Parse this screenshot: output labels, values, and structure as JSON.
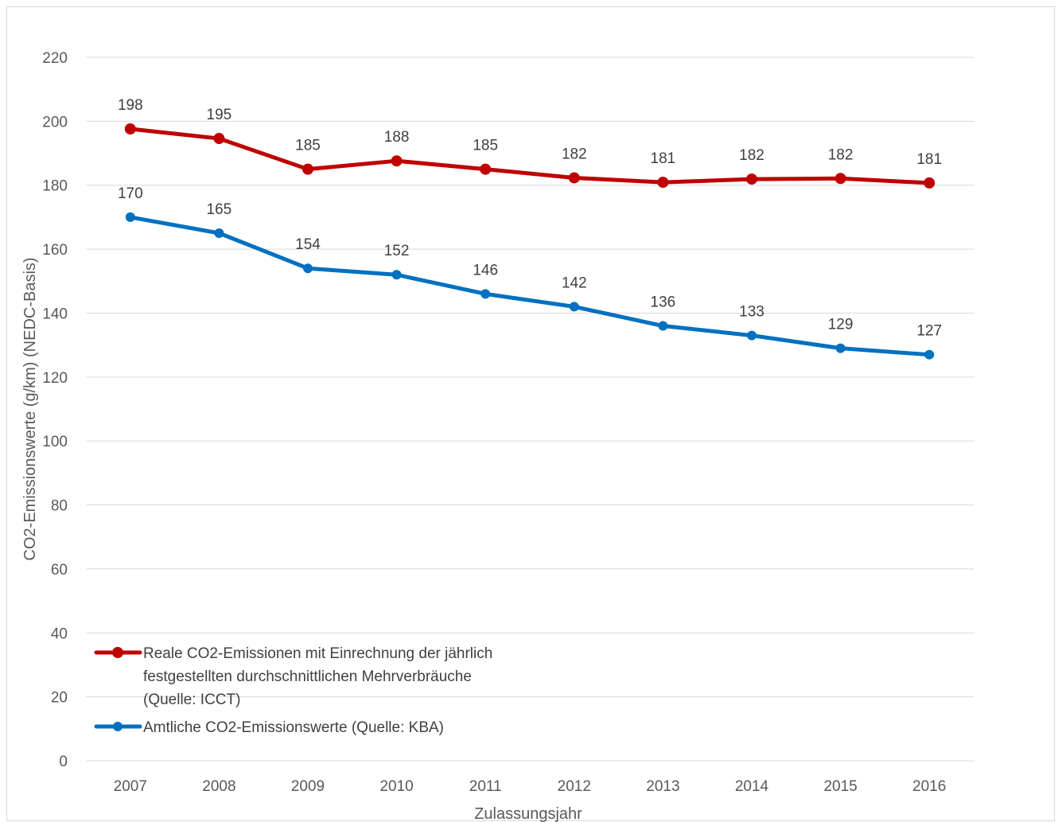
{
  "chart_data": {
    "type": "line",
    "title": "",
    "xlabel": "Zulassungsjahr",
    "ylabel": "CO2-Emissionswerte (g/km) (NEDC-Basis)",
    "ylim": [
      0,
      220
    ],
    "yticks": [
      "0",
      "20",
      "40",
      "60",
      "80",
      "100",
      "120",
      "140",
      "160",
      "180",
      "200",
      "220"
    ],
    "categories": [
      "2007",
      "2008",
      "2009",
      "2010",
      "2011",
      "2012",
      "2013",
      "2014",
      "2015",
      "2016"
    ],
    "grid": true,
    "legend_position": "bottom-left",
    "series": [
      {
        "name_lines": [
          "Reale CO2-Emissionen mit Einrechnung der jährlich",
          "festgestellten durchschnittlichen Mehrverbräuche",
          "(Quelle: ICCT)"
        ],
        "color": "#c00000",
        "values": [
          197.6,
          194.6,
          185.0,
          187.6,
          185.0,
          182.3,
          180.9,
          181.9,
          182.1,
          180.7
        ],
        "labels": [
          "198",
          "195",
          "185",
          "188",
          "185",
          "182",
          "181",
          "182",
          "182",
          "181"
        ]
      },
      {
        "name_lines": [
          "Amtliche CO2-Emissionswerte (Quelle: KBA)"
        ],
        "color": "#0070c0",
        "values": [
          170.0,
          165.0,
          154.0,
          152.0,
          146.0,
          142.0,
          136.0,
          133.0,
          129.0,
          127.0
        ],
        "labels": [
          "170",
          "165",
          "154",
          "152",
          "146",
          "142",
          "136",
          "133",
          "129",
          "127"
        ]
      }
    ]
  }
}
